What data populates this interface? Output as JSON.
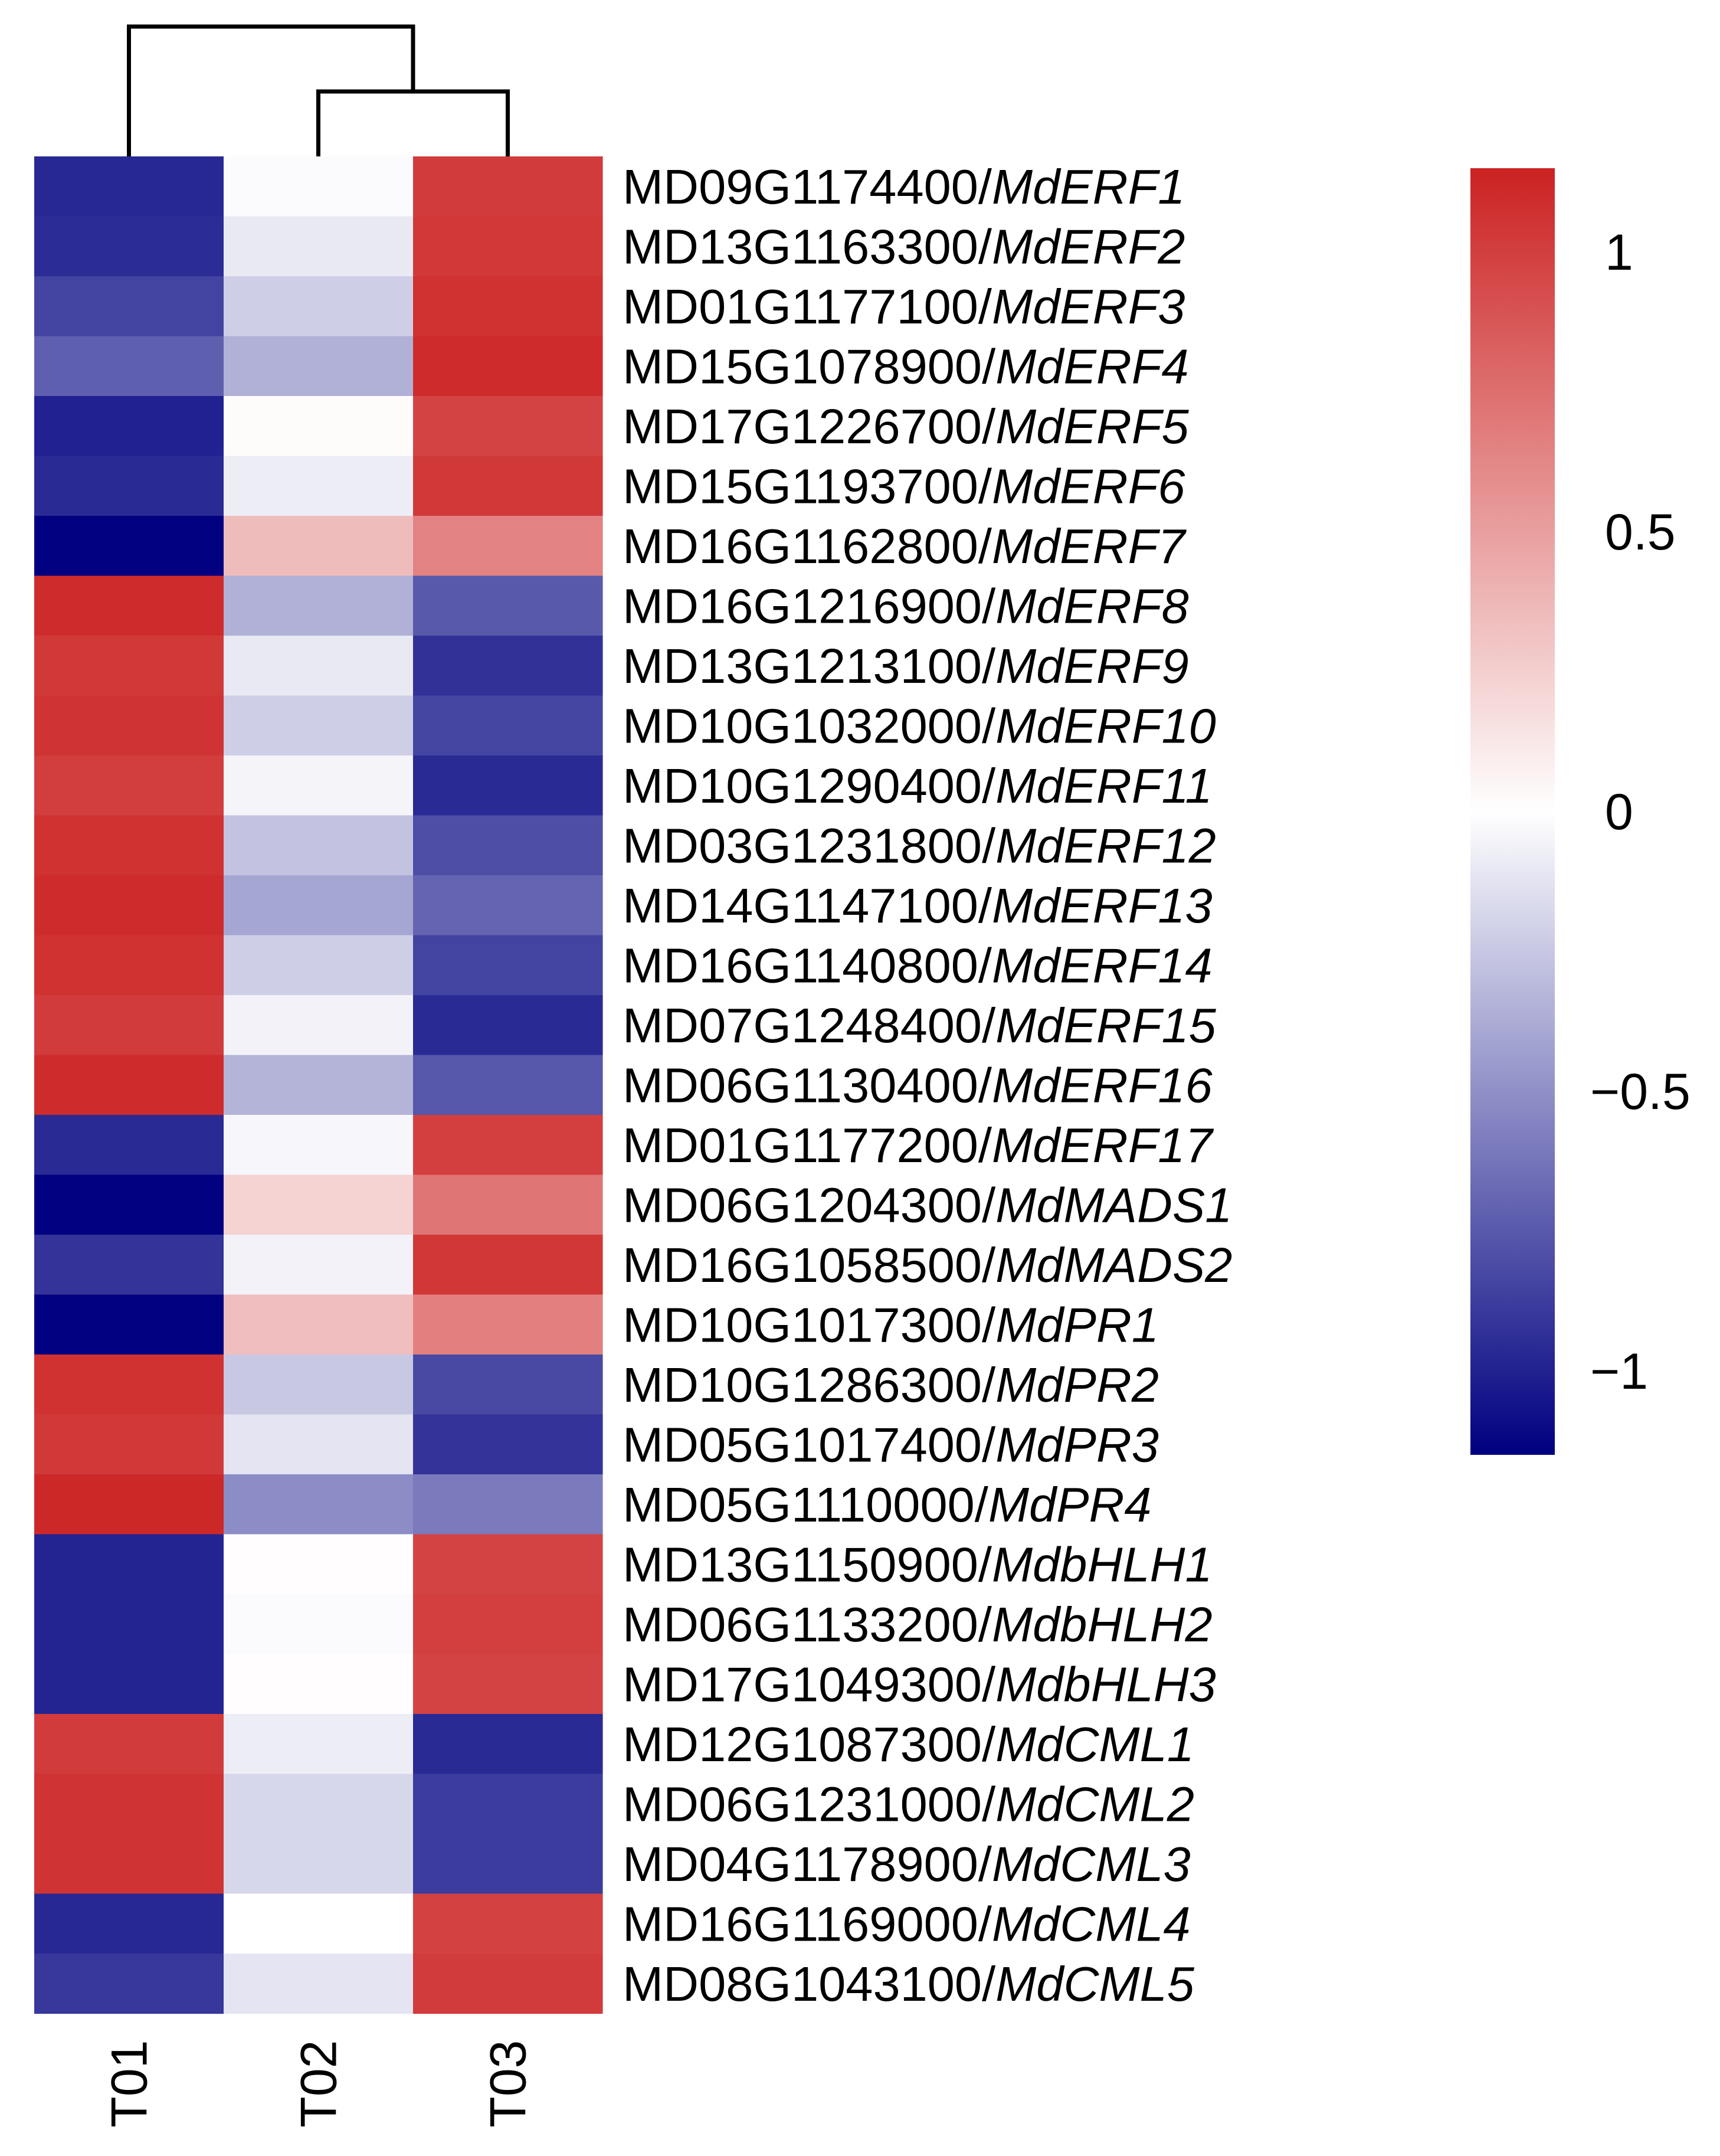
{
  "chart_data": {
    "type": "heatmap",
    "title": "",
    "columns": [
      "T01",
      "T02",
      "T03"
    ],
    "rows": [
      {
        "id": "MD09G1174400",
        "symbol": "MdERF1",
        "values": [
          -0.97,
          -0.02,
          1.02
        ]
      },
      {
        "id": "MD13G1163300",
        "symbol": "MdERF2",
        "values": [
          -0.95,
          -0.1,
          1.03
        ]
      },
      {
        "id": "MD01G1177100",
        "symbol": "MdERF3",
        "values": [
          -0.85,
          -0.22,
          1.07
        ]
      },
      {
        "id": "MD15G1078900",
        "symbol": "MdERF4",
        "values": [
          -0.72,
          -0.35,
          1.1
        ]
      },
      {
        "id": "MD17G1226700",
        "symbol": "MdERF5",
        "values": [
          -1.0,
          0.02,
          0.98
        ]
      },
      {
        "id": "MD15G1193700",
        "symbol": "MdERF6",
        "values": [
          -0.96,
          -0.08,
          1.03
        ]
      },
      {
        "id": "MD16G1162800",
        "symbol": "MdERF7",
        "values": [
          -1.15,
          0.35,
          0.65
        ]
      },
      {
        "id": "MD16G1216900",
        "symbol": "MdERF8",
        "values": [
          1.1,
          -0.35,
          -0.75
        ]
      },
      {
        "id": "MD13G1213100",
        "symbol": "MdERF9",
        "values": [
          1.03,
          -0.1,
          -0.93
        ]
      },
      {
        "id": "MD10G1032000",
        "symbol": "MdERF10",
        "values": [
          1.06,
          -0.22,
          -0.84
        ]
      },
      {
        "id": "MD10G1290400",
        "symbol": "MdERF11",
        "values": [
          1.01,
          -0.05,
          -0.96
        ]
      },
      {
        "id": "MD03G1231800",
        "symbol": "MdERF12",
        "values": [
          1.07,
          -0.27,
          -0.8
        ]
      },
      {
        "id": "MD14G1147100",
        "symbol": "MdERF13",
        "values": [
          1.1,
          -0.4,
          -0.7
        ]
      },
      {
        "id": "MD16G1140800",
        "symbol": "MdERF14",
        "values": [
          1.07,
          -0.22,
          -0.85
        ]
      },
      {
        "id": "MD07G1248400",
        "symbol": "MdERF15",
        "values": [
          1.02,
          -0.06,
          -0.96
        ]
      },
      {
        "id": "MD06G1130400",
        "symbol": "MdERF16",
        "values": [
          1.1,
          -0.34,
          -0.76
        ]
      },
      {
        "id": "MD01G1177200",
        "symbol": "MdERF17",
        "values": [
          -0.96,
          -0.04,
          1.0
        ]
      },
      {
        "id": "MD06G1204300",
        "symbol": "MdMADS1",
        "values": [
          -1.15,
          0.23,
          0.72
        ]
      },
      {
        "id": "MD16G1058500",
        "symbol": "MdMADS2",
        "values": [
          -0.92,
          -0.06,
          1.04
        ]
      },
      {
        "id": "MD10G1017300",
        "symbol": "MdPR1",
        "values": [
          -1.15,
          0.34,
          0.66
        ]
      },
      {
        "id": "MD10G1286300",
        "symbol": "MdPR2",
        "values": [
          1.07,
          -0.25,
          -0.82
        ]
      },
      {
        "id": "MD05G1017400",
        "symbol": "MdPR3",
        "values": [
          1.03,
          -0.12,
          -0.92
        ]
      },
      {
        "id": "MD05G1110000",
        "symbol": "MdPR4",
        "values": [
          1.12,
          -0.52,
          -0.6
        ]
      },
      {
        "id": "MD13G1150900",
        "symbol": "MdbHLH1",
        "values": [
          -0.99,
          0.01,
          0.98
        ]
      },
      {
        "id": "MD06G1133200",
        "symbol": "MdbHLH2",
        "values": [
          -0.99,
          -0.02,
          1.0
        ]
      },
      {
        "id": "MD17G1049300",
        "symbol": "MdbHLH3",
        "values": [
          -0.99,
          0.01,
          0.98
        ]
      },
      {
        "id": "MD12G1087300",
        "symbol": "MdCML1",
        "values": [
          1.02,
          -0.08,
          -0.96
        ]
      },
      {
        "id": "MD06G1231000",
        "symbol": "MdCML2",
        "values": [
          1.06,
          -0.18,
          -0.88
        ]
      },
      {
        "id": "MD04G1178900",
        "symbol": "MdCML3",
        "values": [
          1.06,
          -0.18,
          -0.88
        ]
      },
      {
        "id": "MD16G1169000",
        "symbol": "MdCML4",
        "values": [
          -0.97,
          0.0,
          0.99
        ]
      },
      {
        "id": "MD08G1043100",
        "symbol": "MdCML5",
        "values": [
          -0.9,
          -0.12,
          1.02
        ]
      }
    ],
    "color_scale": {
      "min": -1.15,
      "max": 1.15,
      "low_color": "#000080",
      "mid_color": "#ffffff",
      "high_color": "#cc2222",
      "ticks": [
        {
          "value": 1,
          "label": "1"
        },
        {
          "value": 0.5,
          "label": "0.5"
        },
        {
          "value": 0,
          "label": "0"
        },
        {
          "value": -0.5,
          "label": "−0.5"
        },
        {
          "value": -1,
          "label": "−1"
        }
      ]
    },
    "column_dendrogram": {
      "merges": [
        {
          "left": "T02",
          "right": "T03",
          "height": 1
        },
        {
          "left": "T01",
          "right": "T02+T03",
          "height": 2
        }
      ]
    },
    "legend_position": "right"
  }
}
